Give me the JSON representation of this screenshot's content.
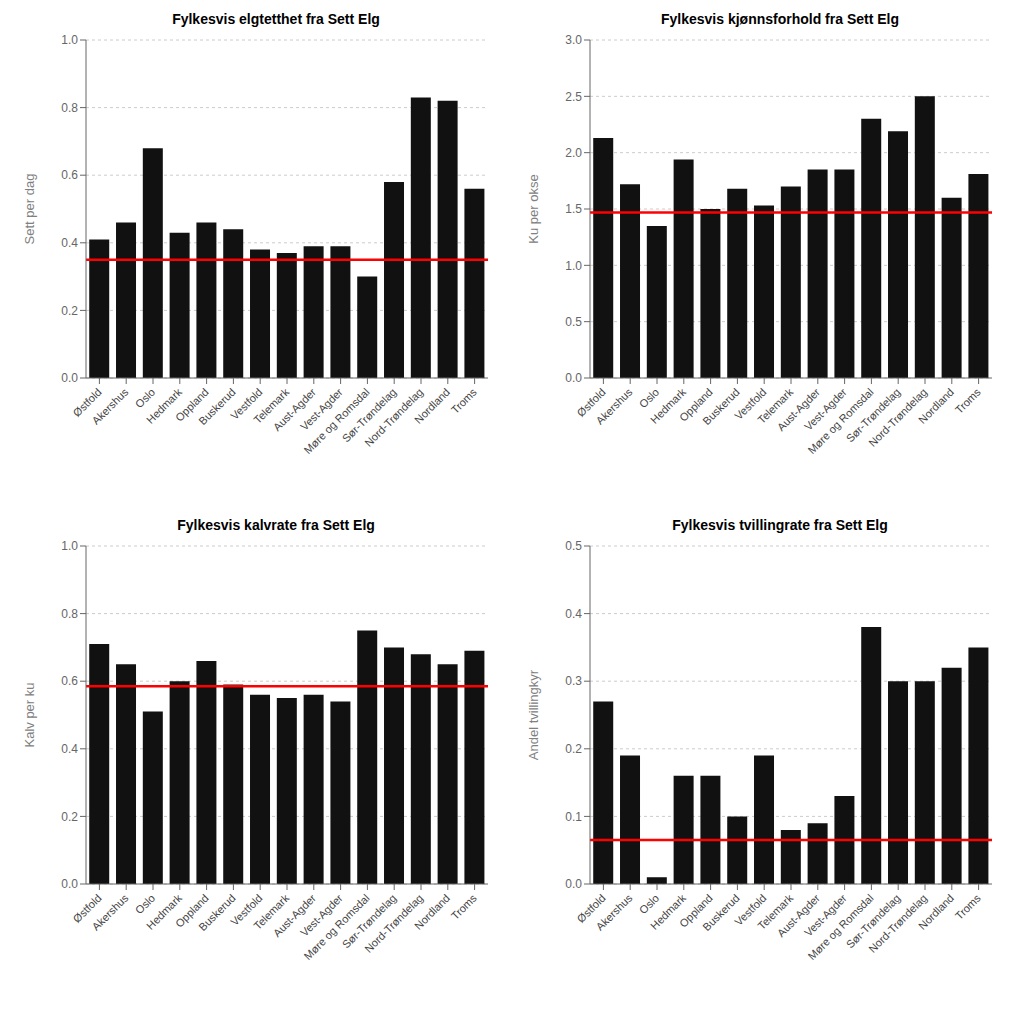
{
  "chart_data": [
    {
      "type": "bar",
      "title": "Fylkesvis elgtetthet fra Sett Elg",
      "y_label": "Sett per dag",
      "categories": [
        "Østfold",
        "Akershus",
        "Oslo",
        "Hedmark",
        "Oppland",
        "Buskerud",
        "Vestfold",
        "Telemark",
        "Aust-Agder",
        "Vest-Agder",
        "Møre og Romsdal",
        "Sør-Trøndelag",
        "Nord-Trøndelag",
        "Nordland",
        "Troms"
      ],
      "values": [
        0.41,
        0.46,
        0.68,
        0.43,
        0.46,
        0.44,
        0.38,
        0.37,
        0.39,
        0.39,
        0.3,
        0.58,
        0.83,
        0.82,
        0.56
      ],
      "color": "#111111",
      "reference_line": {
        "value": 0.35,
        "color": "red"
      },
      "ylim": [
        0.0,
        1.0
      ],
      "yticks": [
        {
          "value": 0,
          "label": "0.0"
        },
        0.2,
        0.4,
        0.6,
        0.8,
        {
          "value": 1,
          "label": "1.0"
        }
      ],
      "grid": true
    },
    {
      "type": "bar",
      "title": "Fylkesvis kjønnsforhold fra Sett Elg",
      "y_label": "Ku per okse",
      "categories": [
        "Østfold",
        "Akershus",
        "Oslo",
        "Hedmark",
        "Oppland",
        "Buskerud",
        "Vestfold",
        "Telemark",
        "Aust-Agder",
        "Vest-Agder",
        "Møre og Romsdal",
        "Sør-Trøndelag",
        "Nord-Trøndelag",
        "Nordland",
        "Troms"
      ],
      "values": [
        2.13,
        1.72,
        1.35,
        1.94,
        1.5,
        1.68,
        1.53,
        1.7,
        1.85,
        1.85,
        2.3,
        2.19,
        2.5,
        1.6,
        1.81
      ],
      "color": "#111111",
      "reference_line": {
        "value": 1.47,
        "color": "red"
      },
      "ylim": [
        0.0,
        3.0
      ],
      "yticks": [
        {
          "value": 0,
          "label": "0.0"
        },
        0.5,
        {
          "value": 1,
          "label": "1.0"
        },
        1.5,
        {
          "value": 2,
          "label": "2.0"
        },
        2.5,
        {
          "value": 3,
          "label": "3.0"
        }
      ],
      "grid": true
    },
    {
      "type": "bar",
      "title": "Fylkesvis kalvrate fra Sett Elg",
      "y_label": "Kalv per ku",
      "categories": [
        "Østfold",
        "Akershus",
        "Oslo",
        "Hedmark",
        "Oppland",
        "Buskerud",
        "Vestfold",
        "Telemark",
        "Aust-Agder",
        "Vest-Agder",
        "Møre og Romsdal",
        "Sør-Trøndelag",
        "Nord-Trøndelag",
        "Nordland",
        "Troms"
      ],
      "values": [
        0.71,
        0.65,
        0.51,
        0.6,
        0.66,
        0.59,
        0.56,
        0.55,
        0.56,
        0.54,
        0.75,
        0.7,
        0.68,
        0.65,
        0.69
      ],
      "color": "#111111",
      "reference_line": {
        "value": 0.585,
        "color": "red"
      },
      "ylim": [
        0.0,
        1.0
      ],
      "yticks": [
        {
          "value": 0,
          "label": "0.0"
        },
        0.2,
        0.4,
        0.6,
        0.8,
        {
          "value": 1,
          "label": "1.0"
        }
      ],
      "grid": true
    },
    {
      "type": "bar",
      "title": "Fylkesvis tvillingrate fra Sett Elg",
      "y_label": "Andel tvillingkyr",
      "categories": [
        "Østfold",
        "Akershus",
        "Oslo",
        "Hedmark",
        "Oppland",
        "Buskerud",
        "Vestfold",
        "Telemark",
        "Aust-Agder",
        "Vest-Agder",
        "Møre og Romsdal",
        "Sør-Trøndelag",
        "Nord-Trøndelag",
        "Nordland",
        "Troms"
      ],
      "values": [
        0.27,
        0.19,
        0.01,
        0.16,
        0.16,
        0.1,
        0.19,
        0.08,
        0.09,
        0.13,
        0.38,
        0.3,
        0.3,
        0.32,
        0.35
      ],
      "color": "#111111",
      "reference_line": {
        "value": 0.065,
        "color": "red"
      },
      "ylim": [
        0.0,
        0.5
      ],
      "yticks": [
        {
          "value": 0,
          "label": "0.0"
        },
        0.1,
        0.2,
        0.3,
        0.4,
        0.5
      ],
      "grid": true
    }
  ]
}
